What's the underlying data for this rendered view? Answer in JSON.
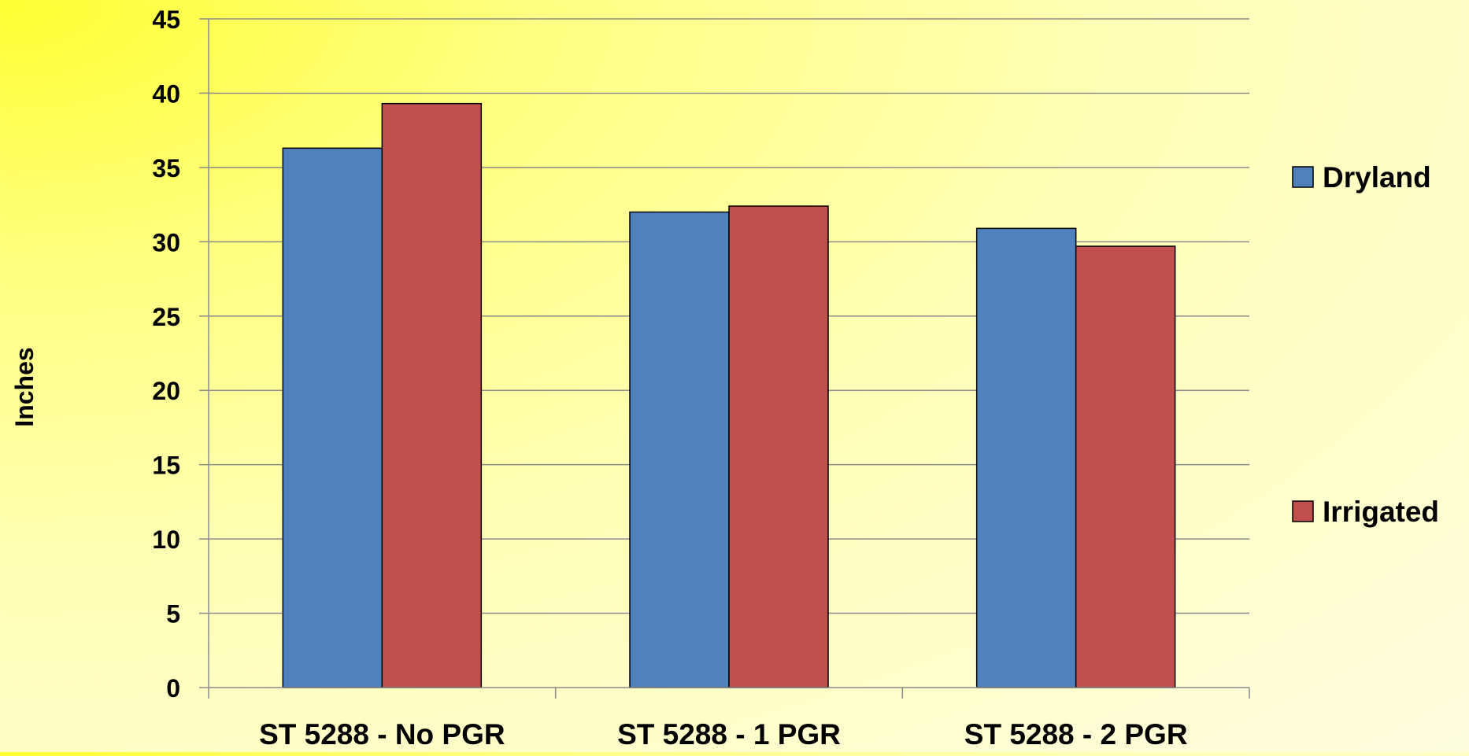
{
  "chart_data": {
    "type": "bar",
    "title": "",
    "xlabel": "",
    "ylabel": "Inches",
    "ylim": [
      0,
      45
    ],
    "yticks": [
      0,
      5,
      10,
      15,
      20,
      25,
      30,
      35,
      40,
      45
    ],
    "grid": true,
    "legend_position": "right",
    "categories": [
      "ST 5288 - No PGR",
      "ST 5288 - 1 PGR",
      "ST 5288 - 2 PGR"
    ],
    "series": [
      {
        "name": "Dryland",
        "color": "#4f81bd",
        "values": [
          36.3,
          32.0,
          30.9
        ]
      },
      {
        "name": "Irrigated",
        "color": "#c0504d",
        "values": [
          39.3,
          32.4,
          29.7
        ]
      }
    ]
  }
}
